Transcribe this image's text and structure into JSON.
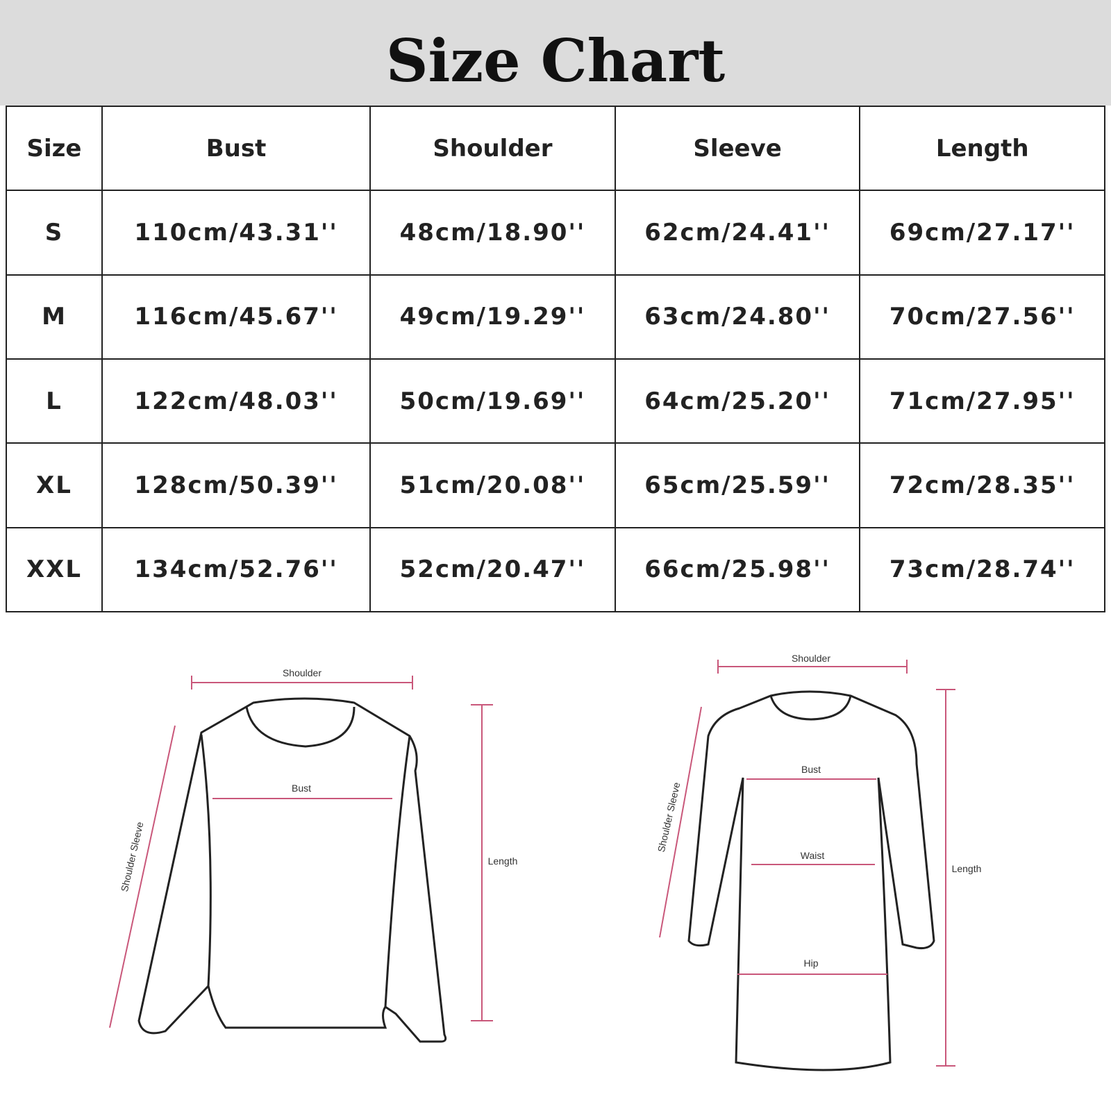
{
  "title": "Size Chart",
  "table": {
    "headers": [
      "Size",
      "Bust",
      "Shoulder",
      "Sleeve",
      "Length"
    ],
    "rows": [
      [
        "S",
        "110cm/43.31''",
        "48cm/18.90''",
        "62cm/24.41''",
        "69cm/27.17''"
      ],
      [
        "M",
        "116cm/45.67''",
        "49cm/19.29''",
        "63cm/24.80''",
        "70cm/27.56''"
      ],
      [
        "L",
        "122cm/48.03''",
        "50cm/19.69''",
        "64cm/25.20''",
        "71cm/27.95''"
      ],
      [
        "XL",
        "128cm/50.39''",
        "51cm/20.08''",
        "65cm/25.59''",
        "72cm/28.35''"
      ],
      [
        "XXL",
        "134cm/52.76''",
        "52cm/20.47''",
        "66cm/25.98''",
        "73cm/28.74''"
      ]
    ]
  },
  "sweater_diagram": {
    "shoulder": "Shoulder",
    "bust": "Bust",
    "sleeve": "Shoulder Sleeve",
    "length": "Length"
  },
  "dress_diagram": {
    "shoulder": "Shoulder",
    "bust": "Bust",
    "waist": "Waist",
    "hip": "Hip",
    "sleeve": "Shoulder Sleeve",
    "length": "Length"
  },
  "colors": {
    "banner": "#dcdcdc",
    "measure_line": "#c9577a"
  }
}
